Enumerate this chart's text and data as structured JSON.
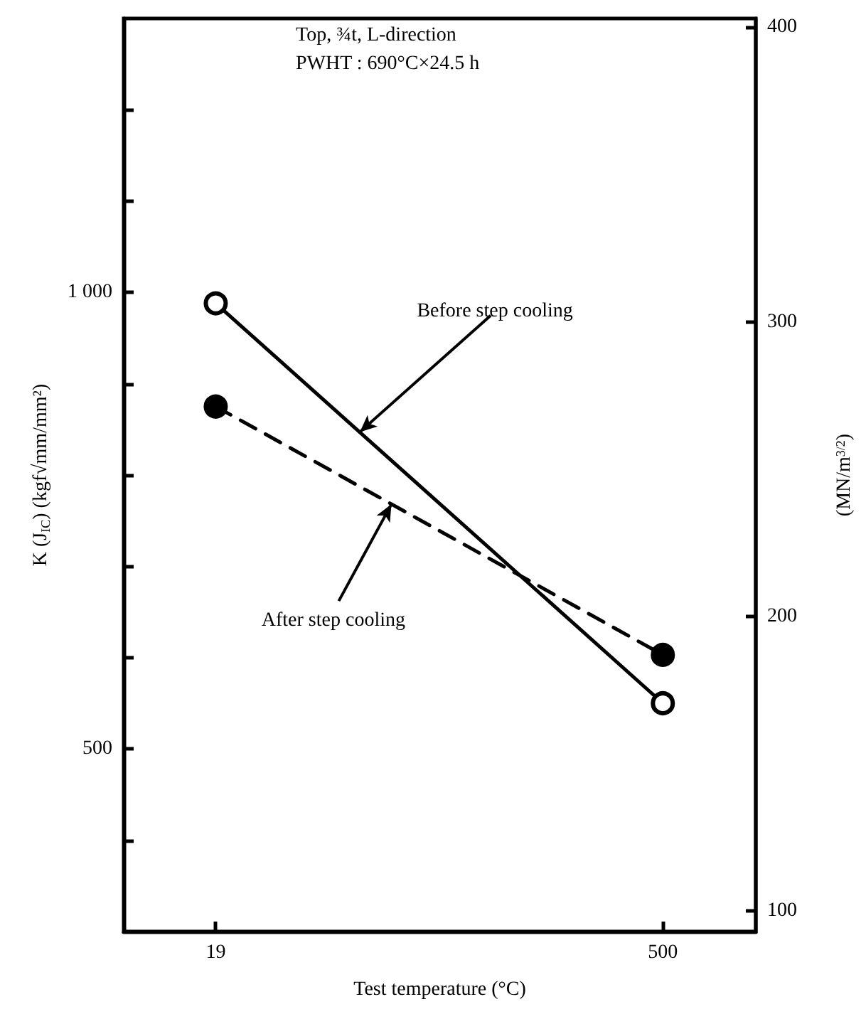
{
  "chart_data": {
    "type": "line",
    "xlabel": "Test temperature (°C)",
    "ylabel": "K (J$_{IC}$) (kgf√mm/mm²)",
    "y2label": "(MN/m$^{3/2}$)",
    "annotations": [
      "Top, ¾t, L-direction",
      "PWHT : 690°C×24.5 h",
      {
        "text": "Before step cooling",
        "x": 174,
        "y": 847
      },
      {
        "text": "After step cooling",
        "x": 208,
        "y": 768
      }
    ],
    "x": [
      19,
      500
    ],
    "series": [
      {
        "color": "#000000",
        "values": [
          988,
          550
        ],
        "line_style": "solid",
        "marker": "circle"
      },
      {
        "color": "#000000",
        "values": [
          875,
          603
        ],
        "line_style": "dashed",
        "marker": "circle"
      }
    ],
    "xlim": [
      -80,
      600
    ],
    "xticks": [
      19,
      500
    ],
    "ylim": [
      300,
      1300
    ],
    "yticks": [
      {
        "value": 400,
        "label": null
      },
      500,
      {
        "value": 600,
        "label": null
      },
      {
        "value": 700,
        "label": null
      },
      {
        "value": 800,
        "label": null
      },
      {
        "value": 900,
        "label": null
      },
      {
        "value": 1000,
        "label": "1 000"
      },
      {
        "value": 1100,
        "label": null
      },
      {
        "value": 1200,
        "label": null
      }
    ],
    "y2lim": [
      93,
      403
    ],
    "y2ticks": [
      100,
      200,
      300,
      400
    ],
    "grid": false
  }
}
